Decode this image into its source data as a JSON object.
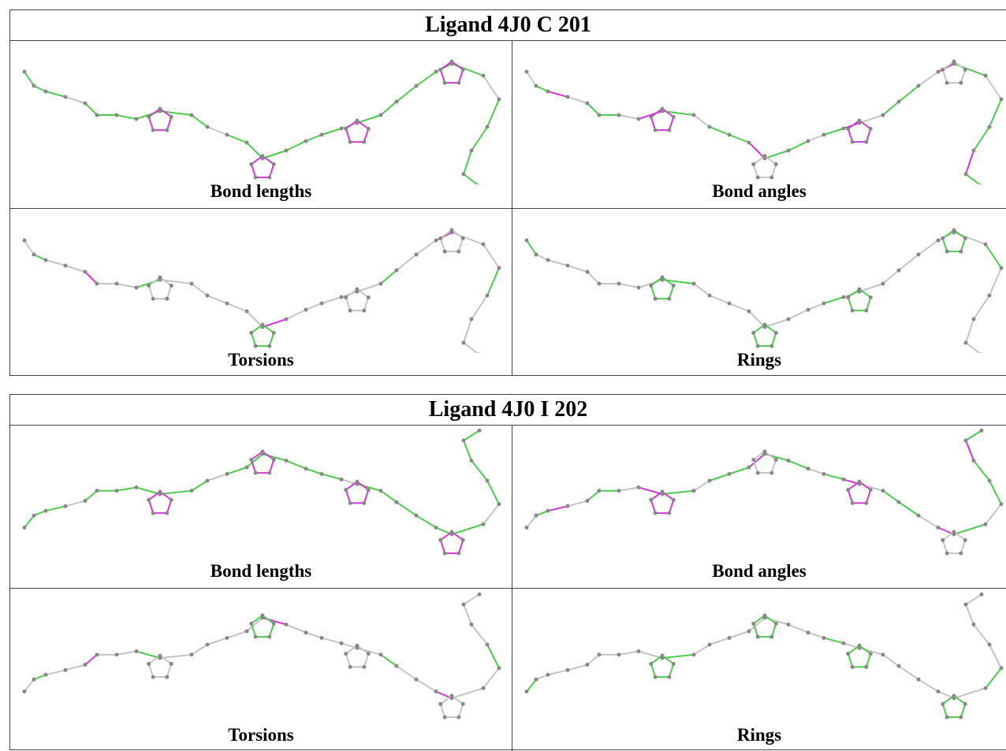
{
  "ligands": [
    {
      "title": "Ligand 4J0 C 201",
      "panels": [
        "Bond lengths",
        "Bond angles",
        "Torsions",
        "Rings"
      ]
    },
    {
      "title": "Ligand 4J0 I 202",
      "panels": [
        "Bond lengths",
        "Bond angles",
        "Torsions",
        "Rings"
      ]
    }
  ]
}
